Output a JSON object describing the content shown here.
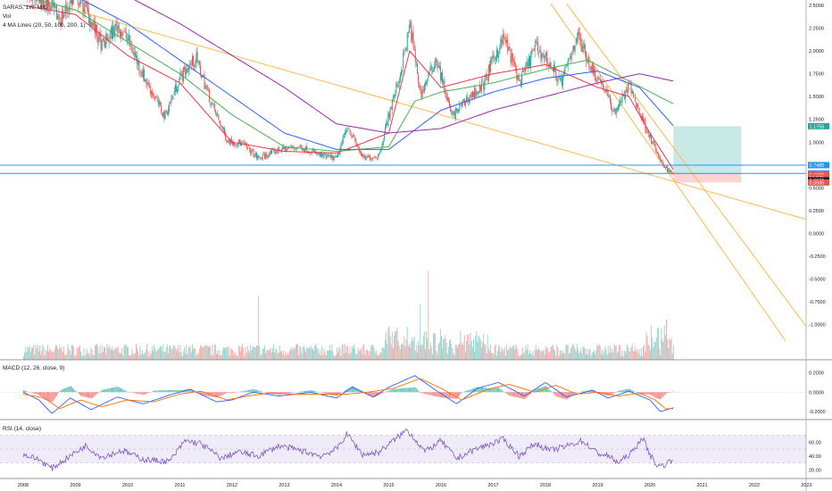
{
  "legend": {
    "symbol": "SARAS, 1W, MIL",
    "volume": "Vol",
    "ma": "4 MA Lines (20, 50, 100, 200, 1)",
    "macd": "MACD (12, 26, close, 9)",
    "rsi": "RSI (14, close)"
  },
  "colors": {
    "up": "#26a69a",
    "down": "#ef5350",
    "ma20": "#f23645",
    "ma50": "#4caf50",
    "ma100": "#2962ff",
    "ma200": "#9c27b0",
    "trend": "#ffb74d",
    "hline": "#2196f3",
    "rsi": "#7e57c2",
    "macd": "#2962ff",
    "signal": "#ff6d00"
  },
  "badges": [
    {
      "text": "1.1755",
      "color": "#26a69a"
    },
    {
      "text": "0.7485",
      "color": "#2196f3"
    },
    {
      "text": "0.6570",
      "color": "#2196f3"
    },
    {
      "text": "0.6388",
      "color": "#ef5350"
    },
    {
      "text": "14.07h",
      "color": "#ef5350"
    },
    {
      "text": "0.6376",
      "color": "#131722"
    },
    {
      "text": "0.5585",
      "color": "#ef5350"
    }
  ],
  "chart_data": [
    {
      "type": "candlestick",
      "title": "SARAS, 1W, MIL",
      "y_ticks": [
        "2.5000",
        "2.2500",
        "2.0000",
        "1.7500",
        "1.5000",
        "1.2500",
        "1.0000",
        "0.7500",
        "0.5000",
        "0.2500",
        "0.0000",
        "-0.2500",
        "-0.5000",
        "-0.7500",
        "-1.0000"
      ],
      "ylim": [
        -1.18,
        2.5
      ],
      "x_ticks": [
        "2008",
        "2009",
        "2010",
        "2011",
        "2012",
        "2013",
        "2014",
        "2015",
        "2016",
        "2017",
        "2018",
        "2019",
        "2020",
        "2021",
        "2022",
        "2023"
      ],
      "xlim": [
        2008.0,
        2023.2
      ],
      "series_anchors": [
        [
          2008.0,
          2.72
        ],
        [
          2008.4,
          2.55
        ],
        [
          2008.7,
          2.35
        ],
        [
          2009.0,
          2.62
        ],
        [
          2009.2,
          2.45
        ],
        [
          2009.5,
          2.05
        ],
        [
          2009.8,
          2.28
        ],
        [
          2010.0,
          2.12
        ],
        [
          2010.3,
          1.72
        ],
        [
          2010.7,
          1.28
        ],
        [
          2011.0,
          1.72
        ],
        [
          2011.3,
          1.92
        ],
        [
          2011.6,
          1.42
        ],
        [
          2011.9,
          1.02
        ],
        [
          2012.2,
          0.98
        ],
        [
          2012.5,
          0.82
        ],
        [
          2012.9,
          0.92
        ],
        [
          2013.3,
          0.95
        ],
        [
          2013.7,
          0.85
        ],
        [
          2014.0,
          0.82
        ],
        [
          2014.2,
          1.18
        ],
        [
          2014.5,
          0.82
        ],
        [
          2014.8,
          0.85
        ],
        [
          2015.0,
          1.32
        ],
        [
          2015.2,
          1.72
        ],
        [
          2015.4,
          2.28
        ],
        [
          2015.6,
          1.52
        ],
        [
          2015.9,
          1.92
        ],
        [
          2016.2,
          1.28
        ],
        [
          2016.5,
          1.48
        ],
        [
          2016.8,
          1.62
        ],
        [
          2017.0,
          1.92
        ],
        [
          2017.2,
          2.15
        ],
        [
          2017.5,
          1.65
        ],
        [
          2017.8,
          2.05
        ],
        [
          2018.0,
          1.92
        ],
        [
          2018.3,
          1.65
        ],
        [
          2018.6,
          2.18
        ],
        [
          2018.9,
          1.78
        ],
        [
          2019.1,
          1.62
        ],
        [
          2019.3,
          1.32
        ],
        [
          2019.6,
          1.62
        ],
        [
          2019.8,
          1.32
        ],
        [
          2020.0,
          1.05
        ],
        [
          2020.2,
          0.78
        ],
        [
          2020.45,
          0.6388
        ]
      ],
      "ma_anchors": {
        "ma20": [
          [
            2008.0,
            2.5
          ],
          [
            2009.0,
            2.4
          ],
          [
            2010.0,
            1.95
          ],
          [
            2011.0,
            1.65
          ],
          [
            2012.0,
            1.0
          ],
          [
            2013.0,
            0.9
          ],
          [
            2014.0,
            0.88
          ],
          [
            2015.0,
            1.1
          ],
          [
            2015.4,
            2.0
          ],
          [
            2016.0,
            1.6
          ],
          [
            2017.0,
            1.75
          ],
          [
            2018.0,
            1.85
          ],
          [
            2019.0,
            1.6
          ],
          [
            2019.6,
            1.5
          ],
          [
            2020.0,
            1.1
          ],
          [
            2020.45,
            0.7
          ]
        ],
        "ma50": [
          [
            2008.0,
            2.6
          ],
          [
            2009.0,
            2.45
          ],
          [
            2010.0,
            2.1
          ],
          [
            2011.0,
            1.75
          ],
          [
            2012.0,
            1.3
          ],
          [
            2013.0,
            0.95
          ],
          [
            2014.0,
            0.9
          ],
          [
            2015.0,
            0.95
          ],
          [
            2015.5,
            1.45
          ],
          [
            2016.0,
            1.55
          ],
          [
            2017.0,
            1.65
          ],
          [
            2018.0,
            1.8
          ],
          [
            2018.8,
            1.9
          ],
          [
            2019.5,
            1.7
          ],
          [
            2020.45,
            1.42
          ]
        ],
        "ma100": [
          [
            2008.0,
            2.7
          ],
          [
            2009.0,
            2.6
          ],
          [
            2010.0,
            2.3
          ],
          [
            2011.0,
            1.9
          ],
          [
            2012.0,
            1.5
          ],
          [
            2013.0,
            1.1
          ],
          [
            2014.0,
            0.92
          ],
          [
            2015.0,
            0.92
          ],
          [
            2016.0,
            1.35
          ],
          [
            2017.0,
            1.55
          ],
          [
            2018.0,
            1.7
          ],
          [
            2019.0,
            1.78
          ],
          [
            2019.8,
            1.6
          ],
          [
            2020.45,
            1.18
          ]
        ],
        "ma200": [
          [
            2008.0,
            2.85
          ],
          [
            2009.0,
            2.8
          ],
          [
            2010.0,
            2.6
          ],
          [
            2011.0,
            2.3
          ],
          [
            2012.0,
            1.95
          ],
          [
            2013.0,
            1.6
          ],
          [
            2014.0,
            1.2
          ],
          [
            2015.0,
            1.1
          ],
          [
            2016.0,
            1.15
          ],
          [
            2017.0,
            1.35
          ],
          [
            2018.0,
            1.5
          ],
          [
            2019.0,
            1.65
          ],
          [
            2019.8,
            1.75
          ],
          [
            2020.45,
            1.67
          ]
        ]
      },
      "trendlines": [
        [
          [
            2008.55,
            2.52
          ],
          [
            2023.2,
            0.12
          ]
        ],
        [
          [
            2018.1,
            2.52
          ],
          [
            2022.6,
            -1.18
          ]
        ],
        [
          [
            2018.4,
            2.52
          ],
          [
            2023.2,
            -1.18
          ]
        ]
      ],
      "hlines": [
        0.7485,
        0.657
      ],
      "position_box": {
        "x0": 2020.45,
        "x1": 2021.75,
        "target": 1.1755,
        "entry": 0.657,
        "stop": 0.5585
      }
    },
    {
      "type": "bar",
      "title": "Vol",
      "note": "volume histogram in lower part of main pane",
      "spikes": [
        [
          2015.75,
          1.0
        ],
        [
          2012.5,
          0.72
        ],
        [
          2015.6,
          0.62
        ],
        [
          2020.3,
          0.45
        ]
      ]
    },
    {
      "type": "line",
      "title": "MACD (12, 26, close, 9)",
      "y_ticks": [
        "0.2000",
        "0.0000",
        "-0.2000"
      ],
      "ylim": [
        -0.3,
        0.25
      ],
      "macd_anchors": [
        [
          2008.0,
          0.0
        ],
        [
          2008.3,
          -0.08
        ],
        [
          2008.55,
          -0.22
        ],
        [
          2008.9,
          -0.06
        ],
        [
          2009.3,
          -0.18
        ],
        [
          2009.8,
          -0.05
        ],
        [
          2010.3,
          -0.12
        ],
        [
          2010.8,
          -0.03
        ],
        [
          2011.2,
          0.03
        ],
        [
          2011.7,
          -0.1
        ],
        [
          2012.0,
          -0.08
        ],
        [
          2012.4,
          0.0
        ],
        [
          2012.9,
          -0.04
        ],
        [
          2013.5,
          0.0
        ],
        [
          2014.0,
          -0.06
        ],
        [
          2014.3,
          0.05
        ],
        [
          2014.7,
          -0.05
        ],
        [
          2015.0,
          0.05
        ],
        [
          2015.5,
          0.17
        ],
        [
          2015.9,
          0.02
        ],
        [
          2016.3,
          -0.12
        ],
        [
          2016.7,
          0.04
        ],
        [
          2017.1,
          0.1
        ],
        [
          2017.6,
          -0.04
        ],
        [
          2018.0,
          0.1
        ],
        [
          2018.4,
          -0.05
        ],
        [
          2018.9,
          0.02
        ],
        [
          2019.2,
          -0.06
        ],
        [
          2019.6,
          0.01
        ],
        [
          2020.0,
          -0.08
        ],
        [
          2020.2,
          -0.2
        ],
        [
          2020.45,
          -0.16
        ]
      ],
      "signal_anchors": [
        [
          2008.0,
          -0.02
        ],
        [
          2008.4,
          -0.06
        ],
        [
          2008.7,
          -0.17
        ],
        [
          2009.1,
          -0.08
        ],
        [
          2009.5,
          -0.15
        ],
        [
          2010.0,
          -0.08
        ],
        [
          2010.5,
          -0.1
        ],
        [
          2011.0,
          -0.02
        ],
        [
          2011.4,
          0.01
        ],
        [
          2011.9,
          -0.08
        ],
        [
          2012.3,
          -0.04
        ],
        [
          2012.7,
          -0.01
        ],
        [
          2013.2,
          -0.02
        ],
        [
          2013.8,
          -0.02
        ],
        [
          2014.2,
          -0.02
        ],
        [
          2014.6,
          0.0
        ],
        [
          2015.1,
          0.04
        ],
        [
          2015.6,
          0.14
        ],
        [
          2016.0,
          0.04
        ],
        [
          2016.4,
          -0.08
        ],
        [
          2016.9,
          0.03
        ],
        [
          2017.3,
          0.08
        ],
        [
          2017.8,
          0.0
        ],
        [
          2018.2,
          0.07
        ],
        [
          2018.6,
          -0.02
        ],
        [
          2019.0,
          0.0
        ],
        [
          2019.4,
          -0.04
        ],
        [
          2019.8,
          -0.01
        ],
        [
          2020.1,
          -0.08
        ],
        [
          2020.3,
          -0.17
        ],
        [
          2020.45,
          -0.17
        ]
      ]
    },
    {
      "type": "line",
      "title": "RSI (14, close)",
      "y_ticks": [
        "60.00",
        "40.00",
        "20.00"
      ],
      "ylim": [
        10,
        90
      ],
      "band": [
        30,
        70
      ],
      "rsi_anchors": [
        [
          2008.0,
          42
        ],
        [
          2008.3,
          35
        ],
        [
          2008.55,
          22
        ],
        [
          2008.9,
          40
        ],
        [
          2009.2,
          55
        ],
        [
          2009.5,
          38
        ],
        [
          2009.9,
          48
        ],
        [
          2010.3,
          35
        ],
        [
          2010.8,
          32
        ],
        [
          2011.1,
          62
        ],
        [
          2011.4,
          58
        ],
        [
          2011.8,
          36
        ],
        [
          2012.1,
          46
        ],
        [
          2012.5,
          40
        ],
        [
          2012.9,
          55
        ],
        [
          2013.3,
          48
        ],
        [
          2013.7,
          40
        ],
        [
          2014.0,
          50
        ],
        [
          2014.2,
          72
        ],
        [
          2014.5,
          42
        ],
        [
          2014.8,
          45
        ],
        [
          2015.05,
          60
        ],
        [
          2015.35,
          78
        ],
        [
          2015.7,
          46
        ],
        [
          2016.0,
          62
        ],
        [
          2016.3,
          36
        ],
        [
          2016.6,
          48
        ],
        [
          2016.9,
          56
        ],
        [
          2017.2,
          64
        ],
        [
          2017.5,
          40
        ],
        [
          2017.8,
          58
        ],
        [
          2018.1,
          48
        ],
        [
          2018.4,
          54
        ],
        [
          2018.7,
          62
        ],
        [
          2019.0,
          44
        ],
        [
          2019.2,
          40
        ],
        [
          2019.4,
          30
        ],
        [
          2019.7,
          48
        ],
        [
          2019.85,
          68
        ],
        [
          2020.0,
          42
        ],
        [
          2020.15,
          25
        ],
        [
          2020.3,
          28
        ],
        [
          2020.45,
          36
        ]
      ]
    }
  ]
}
